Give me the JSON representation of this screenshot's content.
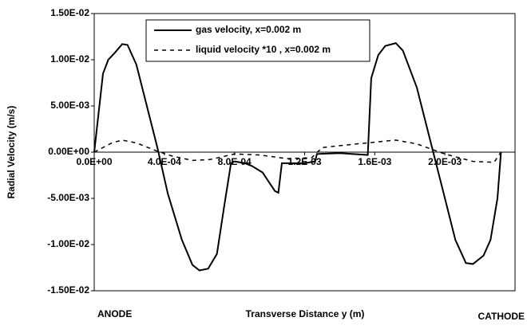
{
  "chart_data": {
    "type": "line",
    "xlabel": "Transverse Distance y (m)",
    "ylabel": "Radial Velocity (m/s)",
    "annotations": [
      "ANODE",
      "CATHODE"
    ],
    "xlim": [
      0,
      0.0024
    ],
    "ylim": [
      -0.015,
      0.015
    ],
    "xticks": [
      {
        "value": 0,
        "label": "0.0E+00"
      },
      {
        "value": 0.0004,
        "label": "4.0E-04"
      },
      {
        "value": 0.0008,
        "label": "8.0E-04"
      },
      {
        "value": 0.0012,
        "label": "1.2E-03"
      },
      {
        "value": 0.0016,
        "label": "1.6E-03"
      },
      {
        "value": 0.002,
        "label": "2.0E-03"
      }
    ],
    "yticks": [
      {
        "value": 0.015,
        "label": "1.50E-02"
      },
      {
        "value": 0.01,
        "label": "1.00E-02"
      },
      {
        "value": 0.005,
        "label": "5.00E-03"
      },
      {
        "value": 0,
        "label": "0.00E+00"
      },
      {
        "value": -0.005,
        "label": "-5.00E-03"
      },
      {
        "value": -0.01,
        "label": "-1.00E-02"
      },
      {
        "value": -0.015,
        "label": "-1.50E-02"
      }
    ],
    "legend": "top",
    "series": [
      {
        "name": "gas velocity, x=0.002 m",
        "color": "#000000",
        "dash": "solid",
        "x": [
          0,
          5e-05,
          8e-05,
          0.00012,
          0.00016,
          0.00019,
          0.00024,
          0.0003,
          0.00036,
          0.00042,
          0.0005,
          0.00056,
          0.0006,
          0.00065,
          0.0007,
          0.00074,
          0.00078,
          0.0008,
          0.00086,
          0.0009,
          0.00096,
          0.00103,
          0.00105,
          0.00107,
          0.0012,
          0.00126,
          0.00127,
          0.0014,
          0.00156,
          0.00158,
          0.00162,
          0.00166,
          0.00172,
          0.00176,
          0.00184,
          0.00192,
          0.002,
          0.00206,
          0.00212,
          0.00216,
          0.00222,
          0.00226,
          0.0023,
          0.00232
        ],
        "values": [
          0,
          0.0085,
          0.01,
          0.0108,
          0.0117,
          0.0116,
          0.0095,
          0.005,
          0.0005,
          -0.0045,
          -0.0095,
          -0.0122,
          -0.0128,
          -0.0126,
          -0.011,
          -0.006,
          -0.0012,
          -0.001,
          -0.0012,
          -0.0015,
          -0.0022,
          -0.0042,
          -0.0044,
          -0.0012,
          -0.0012,
          -0.001,
          -0.0002,
          -0.0001,
          -0.0003,
          0.008,
          0.0105,
          0.0115,
          0.0118,
          0.011,
          0.007,
          0.001,
          -0.005,
          -0.0095,
          -0.012,
          -0.0121,
          -0.0112,
          -0.0095,
          -0.005,
          0
        ]
      },
      {
        "name": "liquid velocity *10 , x=0.002 m",
        "color": "#000000",
        "dash": "dashed",
        "x": [
          0,
          0.0001,
          0.00016,
          0.00024,
          0.00036,
          0.00044,
          0.00056,
          0.00066,
          0.0008,
          0.00094,
          0.0011,
          0.00124,
          0.0013,
          0.0015,
          0.00172,
          0.00184,
          0.002,
          0.00216,
          0.00228,
          0.00232
        ],
        "values": [
          0,
          0.001,
          0.0013,
          0.001,
          0.0001,
          -0.0004,
          -0.0009,
          -0.0008,
          -0.0002,
          -0.0003,
          -0.0007,
          -0.0006,
          0.0005,
          0.0009,
          0.0013,
          0.0009,
          -0.0002,
          -0.001,
          -0.0011,
          0
        ]
      }
    ]
  }
}
